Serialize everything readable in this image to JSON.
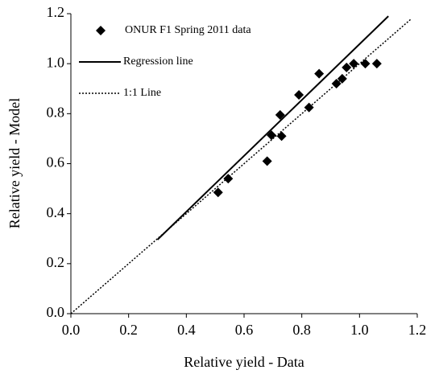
{
  "chart_data": {
    "type": "scatter",
    "xlabel": "Relative yield - Data",
    "ylabel": "Relative yield - Model",
    "xlim": [
      0,
      1.2
    ],
    "ylim": [
      0,
      1.2
    ],
    "xticks": [
      {
        "value": 0,
        "label": "0.0"
      },
      {
        "value": 0.2,
        "label": "0.2"
      },
      {
        "value": 0.4,
        "label": "0.4"
      },
      {
        "value": 0.6,
        "label": "0.6"
      },
      {
        "value": 0.8,
        "label": "0.8"
      },
      {
        "value": 1.0,
        "label": "1.0"
      },
      {
        "value": 1.2,
        "label": "1.2"
      }
    ],
    "yticks": [
      {
        "value": 0,
        "label": "0.0"
      },
      {
        "value": 0.2,
        "label": "0.2"
      },
      {
        "value": 0.4,
        "label": "0.4"
      },
      {
        "value": 0.6,
        "label": "0.6"
      },
      {
        "value": 0.8,
        "label": "0.8"
      },
      {
        "value": 1.0,
        "label": "1.0"
      },
      {
        "value": 1.2,
        "label": "1.2"
      }
    ],
    "legend": "upper left",
    "series": [
      {
        "name": "ONUR F1 Spring 2011 data",
        "color": "#000000",
        "style": "marker",
        "x": [
          0.51,
          0.545,
          0.68,
          0.695,
          0.725,
          0.73,
          0.79,
          0.825,
          0.86,
          0.92,
          0.94,
          0.955,
          0.98,
          1.02,
          1.06
        ],
        "values": [
          0.485,
          0.54,
          0.61,
          0.714,
          0.795,
          0.71,
          0.875,
          0.825,
          0.96,
          0.92,
          0.94,
          0.985,
          1.0,
          1.0,
          1.0
        ]
      },
      {
        "name": "Regression line",
        "color": "#000000",
        "style": "solid",
        "x": [
          0.3,
          1.1
        ],
        "values": [
          0.296,
          1.19
        ]
      },
      {
        "name": "1:1 Line",
        "color": "#000000",
        "style": "dotted",
        "x": [
          0,
          1.18
        ],
        "values": [
          0,
          1.18
        ]
      }
    ]
  }
}
